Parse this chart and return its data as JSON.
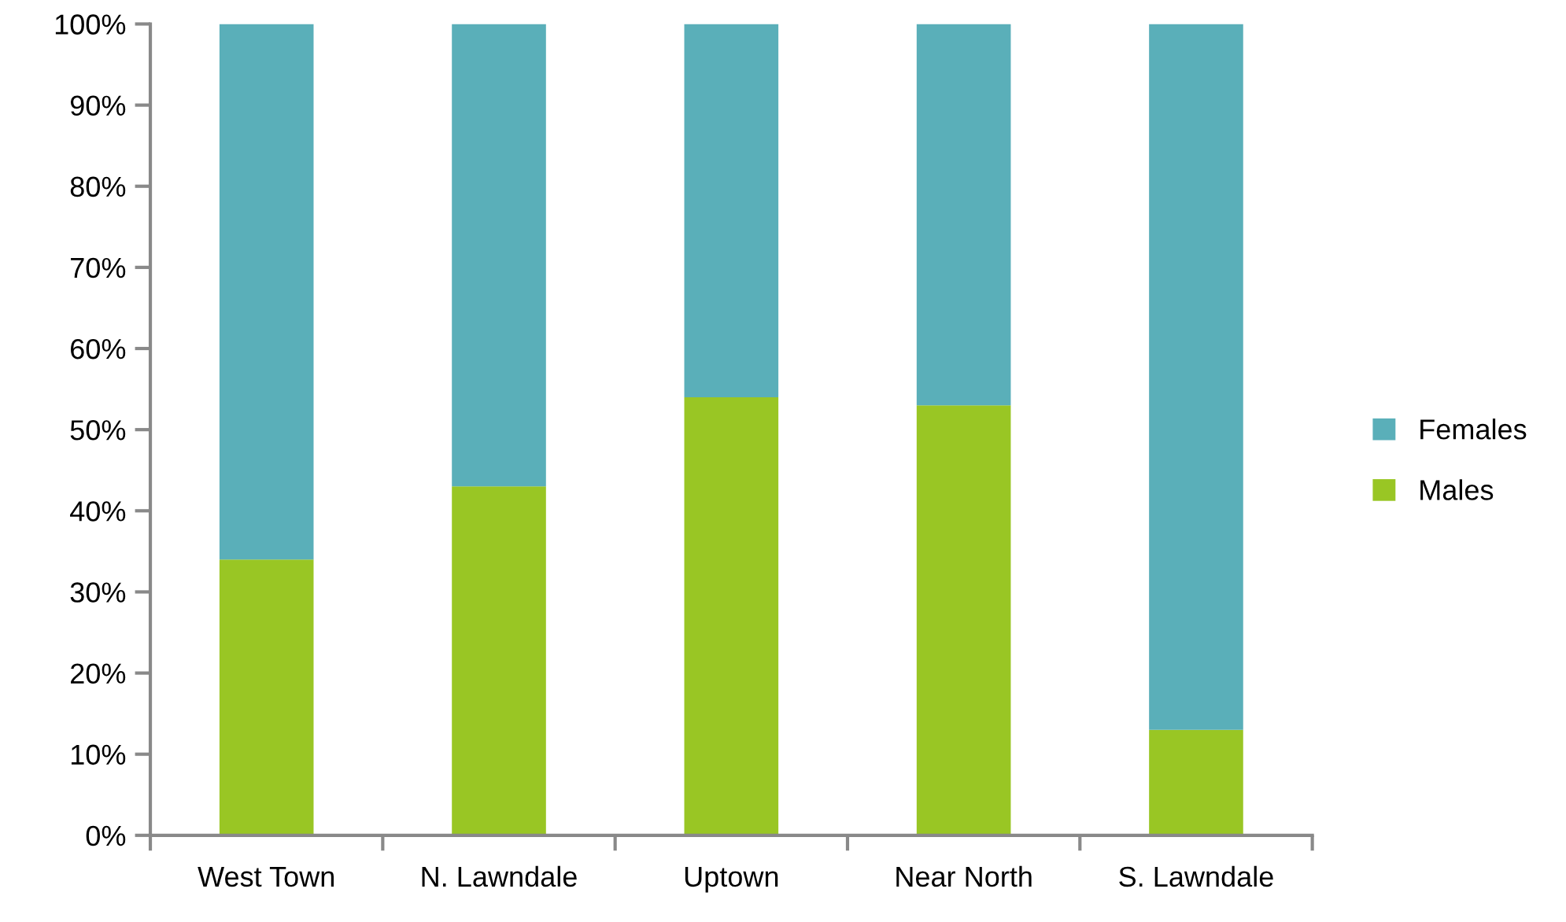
{
  "chart_data": {
    "type": "bar",
    "stacked": true,
    "categories": [
      "West Town",
      "N. Lawndale",
      "Uptown",
      "Near North",
      "S. Lawndale"
    ],
    "series": [
      {
        "name": "Males",
        "color": "#99c624",
        "values": [
          34,
          43,
          54,
          53,
          13
        ]
      },
      {
        "name": "Females",
        "color": "#5aafb9",
        "values": [
          66,
          57,
          46,
          47,
          87
        ]
      }
    ],
    "ylim": [
      0,
      100
    ],
    "yticks": [
      {
        "value": 0,
        "label": "0%"
      },
      {
        "value": 10,
        "label": "10%"
      },
      {
        "value": 20,
        "label": "20%"
      },
      {
        "value": 30,
        "label": "30%"
      },
      {
        "value": 40,
        "label": "40%"
      },
      {
        "value": 50,
        "label": "50%"
      },
      {
        "value": 60,
        "label": "60%"
      },
      {
        "value": 70,
        "label": "70%"
      },
      {
        "value": 80,
        "label": "80%"
      },
      {
        "value": 90,
        "label": "90%"
      },
      {
        "value": 100,
        "label": "100%"
      }
    ],
    "legend": "right",
    "grid": false
  }
}
